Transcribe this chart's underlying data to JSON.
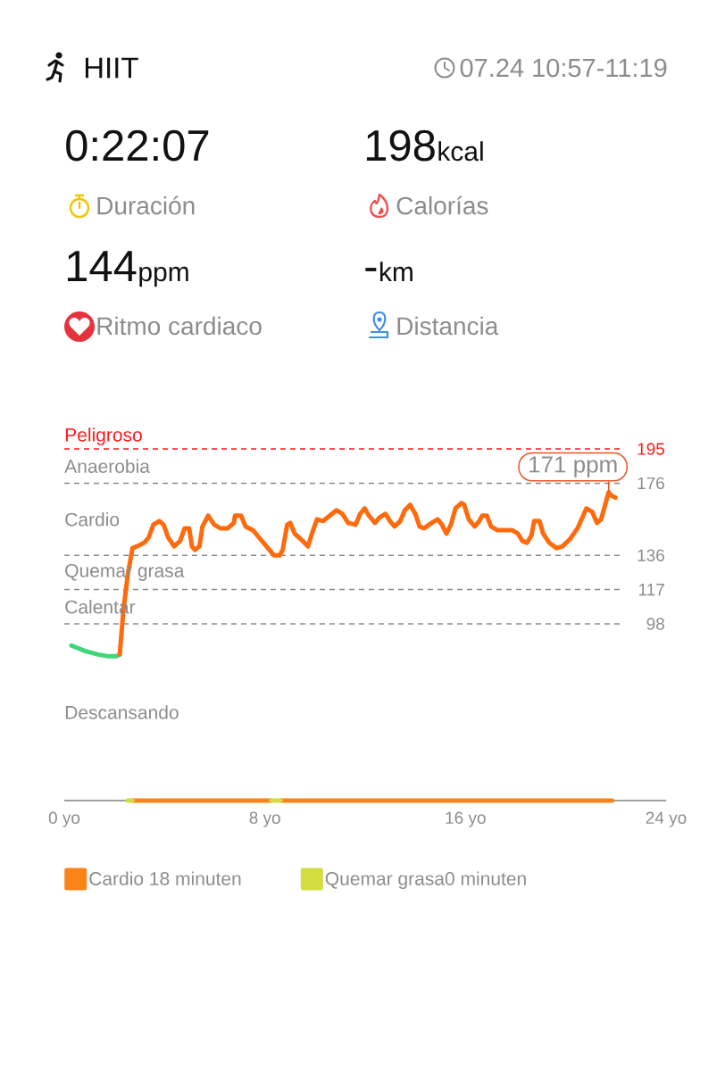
{
  "chart_data": [
    {
      "type": "other",
      "title": "HIIT",
      "subtitle": "07.24 10:57-11:19",
      "annotations": [
        "0:22:07",
        "Duración",
        "198",
        "kcal",
        "Calorías",
        "144",
        "ppm",
        "Ritmo cardiaco",
        "-",
        "km",
        "Distancia"
      ]
    },
    {
      "type": "line",
      "series": [
        {
          "color": "#3fd67a",
          "x": [
            0.28,
            0.82,
            1.35,
            1.78,
            2.07,
            2.21
          ],
          "values": [
            86,
            83,
            81,
            80,
            80,
            81
          ]
        },
        {
          "color": "#ff6a0d",
          "x": [
            2.21,
            2.36,
            2.54,
            2.72,
            2.9,
            3.19,
            3.37,
            3.55,
            3.79,
            3.96,
            4.14,
            4.38,
            4.62,
            4.8,
            4.98,
            5.09,
            5.21,
            5.39,
            5.51,
            5.74,
            5.98,
            6.22,
            6.52,
            6.76,
            6.81,
            7.05,
            7.23,
            7.52,
            7.76,
            8.06,
            8.36,
            8.59,
            8.71,
            8.89,
            9.01,
            9.19,
            9.43,
            9.72,
            9.9,
            10.08,
            10.32,
            10.5,
            10.85,
            11.09,
            11.32,
            11.62,
            11.8,
            11.98,
            12.15,
            12.39,
            12.57,
            12.81,
            12.99,
            13.17,
            13.4,
            13.58,
            13.79,
            14.0,
            14.17,
            14.35,
            14.65,
            14.89,
            15.06,
            15.24,
            15.42,
            15.6,
            15.84,
            15.95,
            16.13,
            16.37,
            16.55,
            16.67,
            16.85,
            17.02,
            17.26,
            17.85,
            18.09,
            18.27,
            18.45,
            18.63,
            18.74,
            18.95,
            19.1,
            19.34,
            19.63,
            19.87,
            20.17,
            20.47,
            20.82,
            21.06,
            21.24,
            21.41,
            21.59,
            21.71,
            21.83,
            21.98
          ],
          "values": [
            81,
            106,
            126,
            140,
            141,
            143,
            146,
            153,
            155,
            153,
            146,
            141,
            144,
            151,
            151,
            141,
            139,
            141,
            152,
            158,
            153,
            151,
            151,
            154,
            158,
            158,
            152,
            150,
            146,
            141,
            136,
            136,
            139,
            153,
            154,
            148,
            145,
            141,
            149,
            156,
            155,
            157,
            161,
            159,
            154,
            153,
            159,
            162,
            158,
            154,
            157,
            159,
            155,
            152,
            155,
            161,
            164,
            159,
            152,
            151,
            154,
            156,
            153,
            148,
            153,
            162,
            165,
            164,
            156,
            152,
            155,
            158,
            158,
            152,
            150,
            150,
            148,
            144,
            143,
            147,
            155,
            155,
            148,
            143,
            140,
            141,
            145,
            151,
            162,
            160,
            154,
            156,
            165,
            171,
            169,
            168
          ]
        },
        {
          "name": "Cardio 18 minuten",
          "color": "#fa8419",
          "x": [
            2.71,
            8.26
          ],
          "values": [
            0,
            0
          ]
        },
        {
          "color": "#fa8419",
          "x": [
            8.62,
            21.85
          ],
          "values": [
            0,
            0
          ]
        },
        {
          "name": "Quemar grasa0 minuten",
          "color": "#d4dd3f",
          "x": [
            2.53,
            2.71
          ],
          "values": [
            0,
            0
          ]
        },
        {
          "color": "#d4dd3f",
          "x": [
            8.26,
            8.62
          ],
          "values": [
            0,
            0
          ]
        }
      ],
      "xlim": [
        0,
        24
      ],
      "xticks": [
        {
          "value": 0,
          "label": "0 yo"
        },
        {
          "value": 8,
          "label": "8 yo"
        },
        {
          "value": 16,
          "label": "16 yo"
        },
        {
          "value": 24,
          "label": "24 yo"
        }
      ],
      "ylim": [
        0,
        195
      ],
      "yticks": [
        98,
        117,
        136,
        176,
        195
      ],
      "grid": "y",
      "ref_lines": [
        {
          "axis": "y",
          "value": 195,
          "label": "Peligroso",
          "color": "#ff1a1a",
          "line_style": "dashed"
        }
      ],
      "annotations": [
        "Anaerobia",
        "Cardio",
        "Quemar grasa",
        "Calentar",
        "Descansando",
        {
          "text": "171 ppm",
          "x": 21.71,
          "y": 171
        }
      ],
      "legend": "bottom"
    }
  ]
}
